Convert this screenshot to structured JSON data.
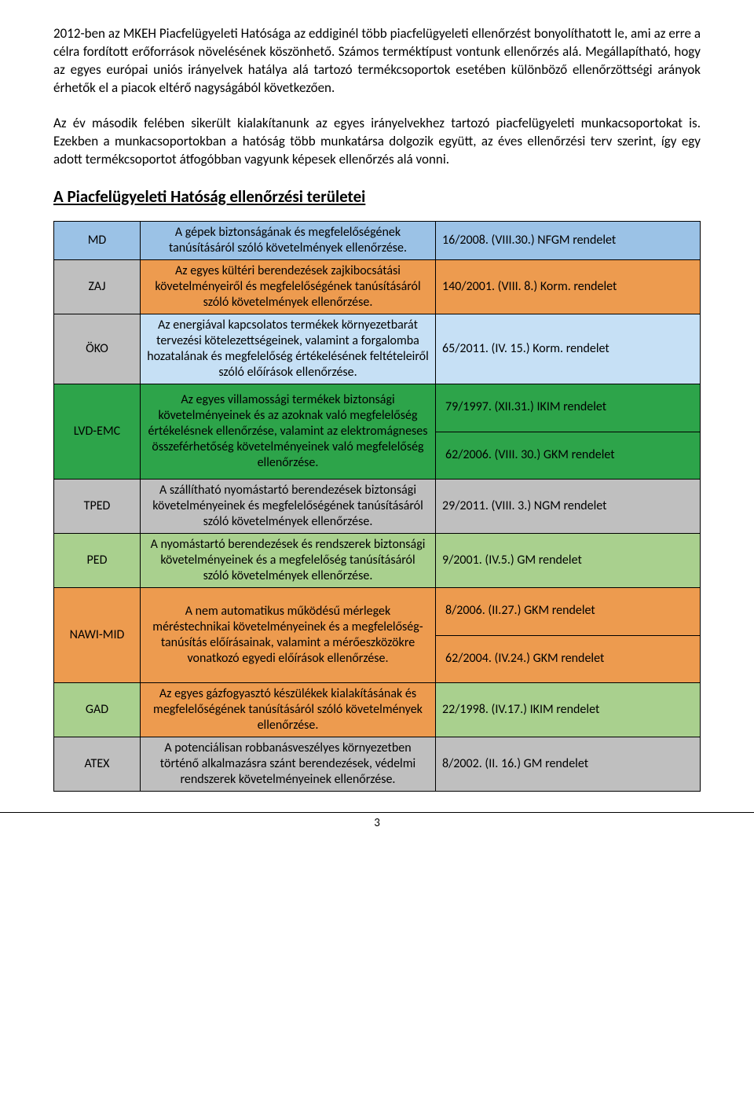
{
  "paragraphs": {
    "p1": "2012-ben az MKEH Piacfelügyeleti Hatósága az eddiginél több piacfelügyeleti ellenőrzést bonyolíthatott le, ami az erre a célra fordított erőforrások növelésének köszönhető. Számos terméktípust vontunk ellenőrzés alá. Megállapítható, hogy az egyes európai uniós irányelvek hatálya alá tartozó termékcsoportok esetében különböző ellenőrzöttségi arányok érhetők el a piacok eltérő nagyságából következően.",
    "p2": "Az év második felében sikerült kialakítanunk az egyes irányelvekhez tartozó piacfelügyeleti munkacsoportokat is. Ezekben a munkacsoportokban a hatóság több munkatársa dolgozik együtt, az éves ellenőrzési terv szerint, így egy adott termékcsoportot átfogóbban vagyunk képesek ellenőrzés alá vonni."
  },
  "heading": "A Piacfelügyeleti Hatóság ellenőrzési területei",
  "colors": {
    "blue": "#9bc2e6",
    "gray": "#bfbfbf",
    "lightblue": "#c6e0f5",
    "green": "#2da44a",
    "lightgreen": "#a9d08e",
    "orange": "#ed9b4f"
  },
  "rows": [
    {
      "code": "MD",
      "desc": "A gépek biztonságának és megfelelőségének tanúsításáról szóló követelmények ellenőrzése.",
      "law": "16/2008. (VIII.30.) NFGM rendelet",
      "code_bg": "blue",
      "desc_bg": "blue",
      "law_bg": "blue"
    },
    {
      "code": "ZAJ",
      "desc": "Az egyes kültéri berendezések zajkibocsátási követelményeiről és megfelelőségének tanúsításáról szóló követelmények ellenőrzése.",
      "law": "140/2001. (VIII. 8.) Korm. rendelet",
      "code_bg": "gray",
      "desc_bg": "orange",
      "law_bg": "orange"
    },
    {
      "code": "ÖKO",
      "desc": "Az energiával kapcsolatos termékek környezetbarát tervezési kötelezettségeinek, valamint a forgalomba hozatalának és megfelelőség értékelésének feltételeiről szóló előírások ellenőrzése.",
      "law": "65/2011. (IV. 15.) Korm. rendelet",
      "code_bg": "gray",
      "desc_bg": "lightblue",
      "law_bg": "lightblue"
    },
    {
      "code": "LVD-EMC",
      "desc": "Az egyes villamossági termékek biztonsági követelményeinek és az azoknak való megfelelőség értékelésnek ellenőrzése, valamint az elektromágneses összeférhetőség követelményeinek való megfelelőség ellenőrzése.",
      "law_top": "79/1997. (XII.31.) IKIM rendelet",
      "law_bot": "62/2006. (VIII. 30.) GKM rendelet",
      "code_bg": "green",
      "desc_bg": "green",
      "law_bg": "green",
      "split_law": true
    },
    {
      "code": "TPED",
      "desc": "A szállítható nyomástartó berendezések biztonsági követelményeinek és megfelelőségének tanúsításáról szóló követelmények ellenőrzése.",
      "law": "29/2011. (VIII. 3.) NGM rendelet",
      "code_bg": "gray",
      "desc_bg": "gray",
      "law_bg": "gray"
    },
    {
      "code": "PED",
      "desc": "A nyomástartó berendezések és rendszerek biztonsági követelményeinek és a megfelelőség tanúsításáról szóló követelmények ellenőrzése.",
      "law": "9/2001. (IV.5.) GM rendelet",
      "code_bg": "lightgreen",
      "desc_bg": "lightgreen",
      "law_bg": "lightgreen"
    },
    {
      "code": "NAWI-MID",
      "desc": "A nem automatikus működésű mérlegek méréstechnikai követelményeinek és a megfelelőség-tanúsítás előírásainak, valamint a mérőeszközökre vonatkozó egyedi előírások ellenőrzése.",
      "law_top": "8/2006. (II.27.) GKM rendelet",
      "law_bot": "62/2004. (IV.24.) GKM rendelet",
      "code_bg": "orange",
      "desc_bg": "orange",
      "law_bg": "orange",
      "split_law": true
    },
    {
      "code": "GAD",
      "desc": "Az egyes gázfogyasztó készülékek kialakításának és megfelelőségének tanúsításáról szóló követelmények ellenőrzése.",
      "law": "22/1998. (IV.17.) IKIM rendelet",
      "code_bg": "lightgreen",
      "desc_bg": "orange",
      "law_bg": "lightgreen"
    },
    {
      "code": "ATEX",
      "desc": "A potenciálisan robbanásveszélyes környezetben történő alkalmazásra szánt berendezések, védelmi rendszerek követelményeinek ellenőrzése.",
      "law": "8/2002. (II. 16.) GM rendelet",
      "code_bg": "gray",
      "desc_bg": "gray",
      "law_bg": "gray"
    }
  ],
  "page_number": "3"
}
